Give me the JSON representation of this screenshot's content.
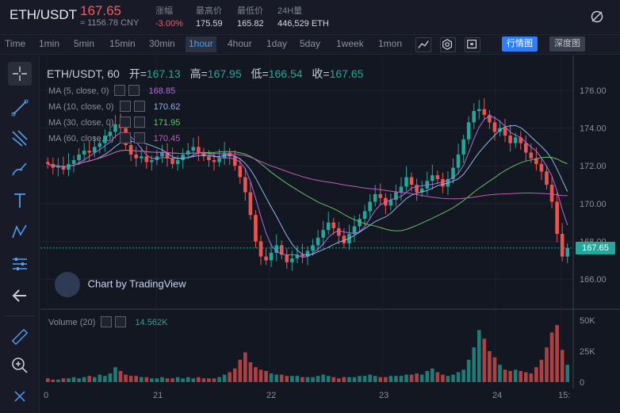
{
  "ticker": {
    "pair": "ETH/USDT",
    "last_price": "167.65",
    "cny": "≈ 1156.78 CNY",
    "change_label": "涨幅",
    "change_value": "-3.00%",
    "high_label": "最高价",
    "high_value": "175.59",
    "low_label": "最低价",
    "low_value": "165.82",
    "vol_label": "24H量",
    "vol_value": "446,529 ETH"
  },
  "toolbar": {
    "timeframes": [
      "Time",
      "1min",
      "5min",
      "15min",
      "30min",
      "1hour",
      "4hour",
      "1day",
      "5day",
      "1week",
      "1mon"
    ],
    "active_timeframe": "1hour",
    "view_candles": "行情图",
    "view_depth": "深度图"
  },
  "legend": {
    "symbol": "ETH/USDT, 60",
    "open_label": "开=",
    "open": "167.13",
    "high_label": "高=",
    "high": "167.95",
    "low_label": "低=",
    "low": "166.54",
    "close_label": "收=",
    "close": "167.65"
  },
  "ma": [
    {
      "label": "MA (5, close, 0)",
      "value": "168.85",
      "color": "#b06be0"
    },
    {
      "label": "MA (10, close, 0)",
      "value": "170.62",
      "color": "#8fb4e8"
    },
    {
      "label": "MA (30, close, 0)",
      "value": "171.95",
      "color": "#63c063"
    },
    {
      "label": "MA (60, close, 0)",
      "value": "170.45",
      "color": "#c25ab8"
    }
  ],
  "tradingview": "Chart by TradingView",
  "volume": {
    "label": "Volume (20)",
    "value": "14.562K"
  },
  "colors": {
    "up": "#26a69a",
    "down": "#ef5350",
    "bg": "#131722"
  },
  "chart_data": {
    "type": "candlestick",
    "price_axis": [
      "176.00",
      "174.00",
      "172.00",
      "170.00",
      "168.00",
      "166.00"
    ],
    "volume_axis": [
      "50K",
      "25K",
      "0"
    ],
    "time_axis": [
      "0",
      "21",
      "22",
      "23",
      "24",
      "15:"
    ],
    "current_price_tag": "167.65",
    "closes": [
      172.1,
      171.9,
      172.0,
      171.8,
      172.1,
      172.3,
      172.6,
      172.8,
      172.7,
      173.0,
      173.2,
      173.6,
      173.8,
      174.2,
      174.0,
      173.1,
      172.6,
      172.4,
      172.5,
      172.2,
      172.3,
      172.5,
      172.7,
      172.4,
      172.1,
      172.3,
      172.6,
      172.8,
      173.0,
      172.7,
      172.5,
      172.3,
      172.2,
      172.4,
      172.7,
      172.5,
      172.0,
      171.4,
      170.6,
      169.4,
      168.0,
      167.2,
      167.0,
      167.4,
      167.8,
      167.3,
      166.9,
      167.1,
      167.3,
      167.2,
      167.5,
      167.8,
      168.2,
      168.6,
      169.0,
      168.7,
      168.3,
      167.9,
      168.4,
      168.8,
      169.2,
      169.6,
      170.1,
      170.5,
      170.3,
      169.9,
      170.2,
      170.6,
      170.9,
      171.4,
      171.0,
      170.6,
      170.8,
      171.2,
      171.5,
      171.3,
      170.9,
      171.3,
      171.9,
      172.6,
      173.4,
      174.3,
      174.9,
      175.0,
      174.7,
      174.3,
      173.8,
      174.0,
      173.6,
      173.2,
      173.5,
      173.2,
      172.7,
      172.4,
      172.1,
      171.7,
      171.0,
      170.1,
      168.4,
      167.2,
      167.65
    ],
    "volumes": [
      3,
      2,
      2,
      3,
      3,
      4,
      3,
      4,
      5,
      4,
      6,
      5,
      7,
      12,
      9,
      6,
      5,
      5,
      4,
      4,
      3,
      3,
      4,
      3,
      3,
      4,
      3,
      4,
      3,
      4,
      3,
      3,
      3,
      4,
      6,
      8,
      11,
      18,
      24,
      16,
      12,
      10,
      9,
      7,
      6,
      6,
      5,
      5,
      5,
      4,
      4,
      4,
      5,
      6,
      5,
      4,
      3,
      4,
      4,
      4,
      5,
      5,
      6,
      5,
      4,
      4,
      5,
      5,
      5,
      6,
      6,
      7,
      6,
      9,
      11,
      8,
      6,
      5,
      6,
      8,
      10,
      18,
      28,
      42,
      35,
      25,
      20,
      14,
      10,
      9,
      10,
      9,
      8,
      7,
      12,
      18,
      28,
      40,
      46,
      26,
      14
    ]
  }
}
